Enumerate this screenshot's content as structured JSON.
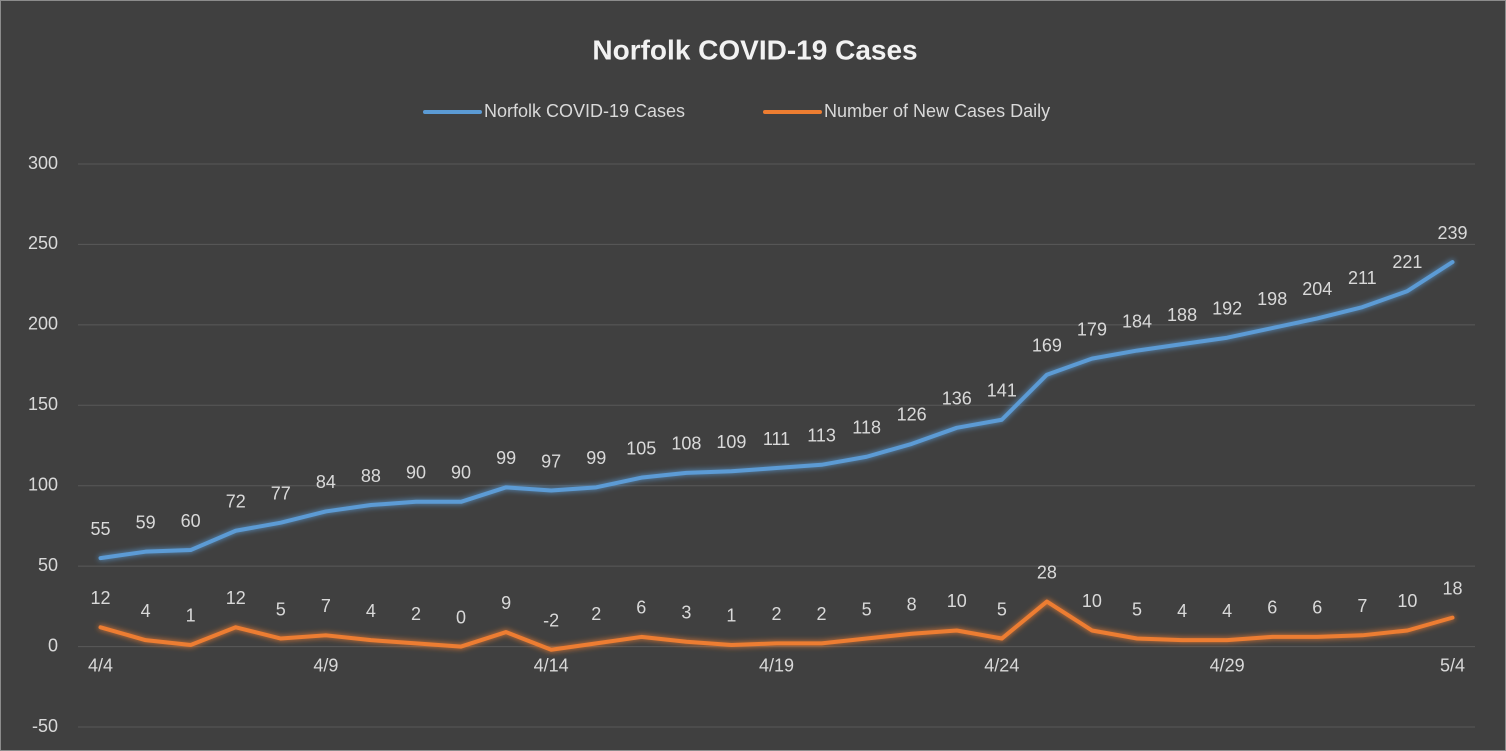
{
  "chart_data": {
    "type": "line",
    "title": "Norfolk COVID-19 Cases",
    "categories": [
      "4/4",
      null,
      null,
      null,
      null,
      "4/9",
      null,
      null,
      null,
      null,
      "4/14",
      null,
      null,
      null,
      null,
      "4/19",
      null,
      null,
      null,
      null,
      "4/24",
      null,
      null,
      null,
      null,
      "4/29",
      null,
      null,
      null,
      null,
      "5/4"
    ],
    "series": [
      {
        "name": "Norfolk COVID-19 Cases",
        "color": "#5b9bd5",
        "values": [
          55,
          59,
          60,
          72,
          77,
          84,
          88,
          90,
          90,
          99,
          97,
          99,
          105,
          108,
          109,
          111,
          113,
          118,
          126,
          136,
          141,
          169,
          179,
          184,
          188,
          192,
          198,
          204,
          211,
          221,
          239
        ]
      },
      {
        "name": "Number of New Cases Daily",
        "color": "#ed7d31",
        "values": [
          12,
          4,
          1,
          12,
          5,
          7,
          4,
          2,
          0,
          9,
          -2,
          2,
          6,
          3,
          1,
          2,
          2,
          5,
          8,
          10,
          5,
          28,
          10,
          5,
          4,
          4,
          6,
          6,
          7,
          10,
          18
        ]
      }
    ],
    "ylim": [
      -50,
      300
    ],
    "yticks": [
      -50,
      0,
      50,
      100,
      150,
      200,
      250,
      300
    ],
    "grid": true,
    "legend": "top",
    "data_labels": true
  }
}
